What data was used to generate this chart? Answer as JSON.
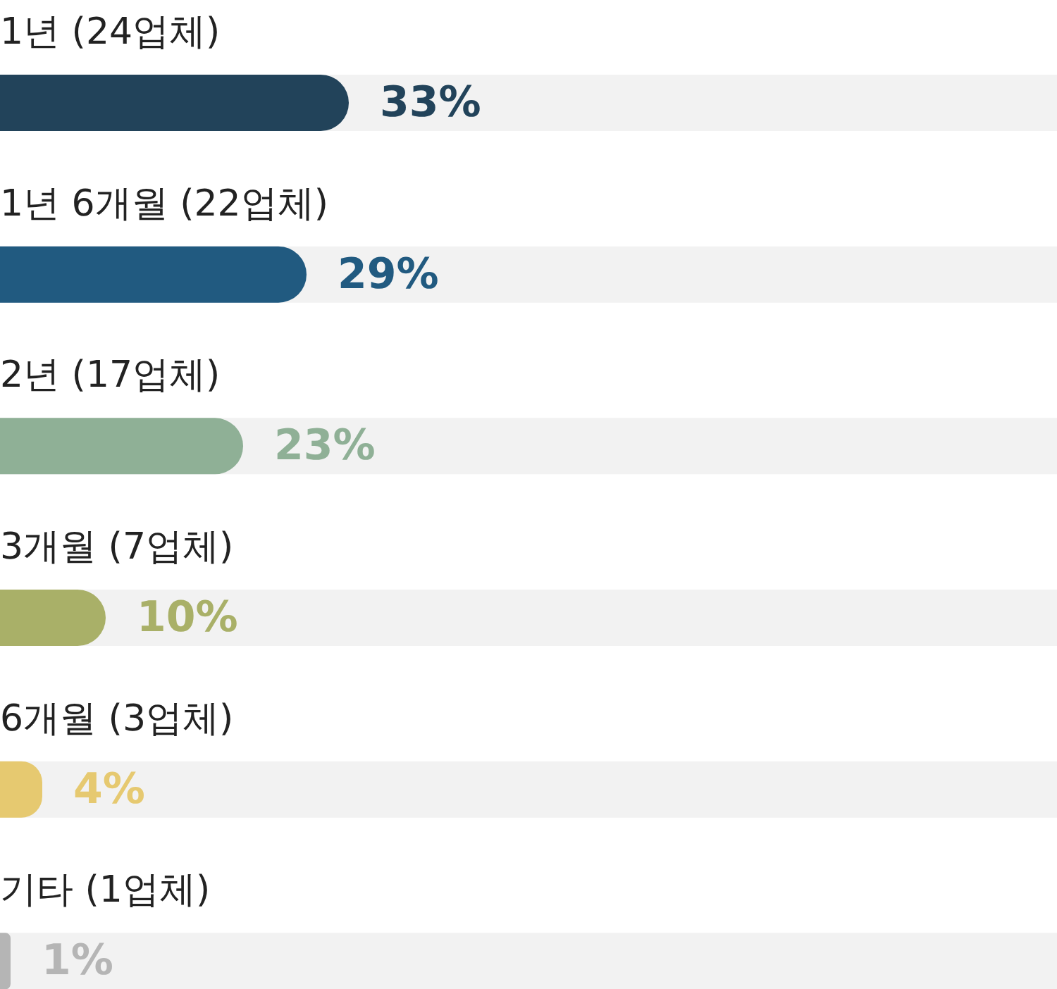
{
  "chart_data": {
    "type": "bar",
    "orientation": "horizontal",
    "categories": [
      "1년 (24업체)",
      "1년 6개월 (22업체)",
      "2년 (17업체)",
      "3개월 (7업체)",
      "6개월 (3업체)",
      "기타 (1업체)"
    ],
    "values": [
      33,
      29,
      23,
      10,
      4,
      1
    ],
    "colors": [
      "#22435a",
      "#215a80",
      "#8fb096",
      "#a9b068",
      "#e6c970",
      "#b5b5b5"
    ],
    "value_labels": [
      "33%",
      "29%",
      "23%",
      "10%",
      "4%",
      "1%"
    ],
    "xlim": [
      0,
      100
    ],
    "tick_labels": false
  }
}
